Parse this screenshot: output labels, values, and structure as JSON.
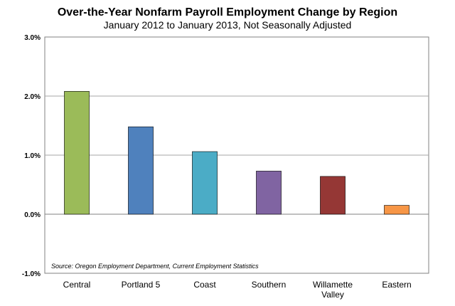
{
  "chart_data": {
    "type": "bar",
    "title": "Over-the-Year Nonfarm Payroll Employment Change by Region",
    "subtitle": "January 2012 to January 2013, Not Seasonally Adjusted",
    "xlabel": "",
    "ylabel": "",
    "categories": [
      "Central",
      "Portland 5",
      "Coast",
      "Southern",
      "Willamette Valley",
      "Eastern"
    ],
    "category_lines": [
      [
        "Central"
      ],
      [
        "Portland 5"
      ],
      [
        "Coast"
      ],
      [
        "Southern"
      ],
      [
        "Willamette",
        "Valley"
      ],
      [
        "Eastern"
      ]
    ],
    "values": [
      2.08,
      1.48,
      1.06,
      0.73,
      0.64,
      0.15
    ],
    "ylim": [
      -1.0,
      3.0
    ],
    "yticks": [
      -1.0,
      0.0,
      1.0,
      2.0,
      3.0
    ],
    "ytick_labels": [
      "-1.0%",
      "0.0%",
      "1.0%",
      "2.0%",
      "3.0%"
    ],
    "grid": true,
    "legend": "none",
    "annotation": "Source: Oregon Employment Department, Current Employment Statistics",
    "colors": [
      "#9bbb59",
      "#4f81bd",
      "#4bacc6",
      "#8064a2",
      "#953735",
      "#f79646"
    ]
  }
}
